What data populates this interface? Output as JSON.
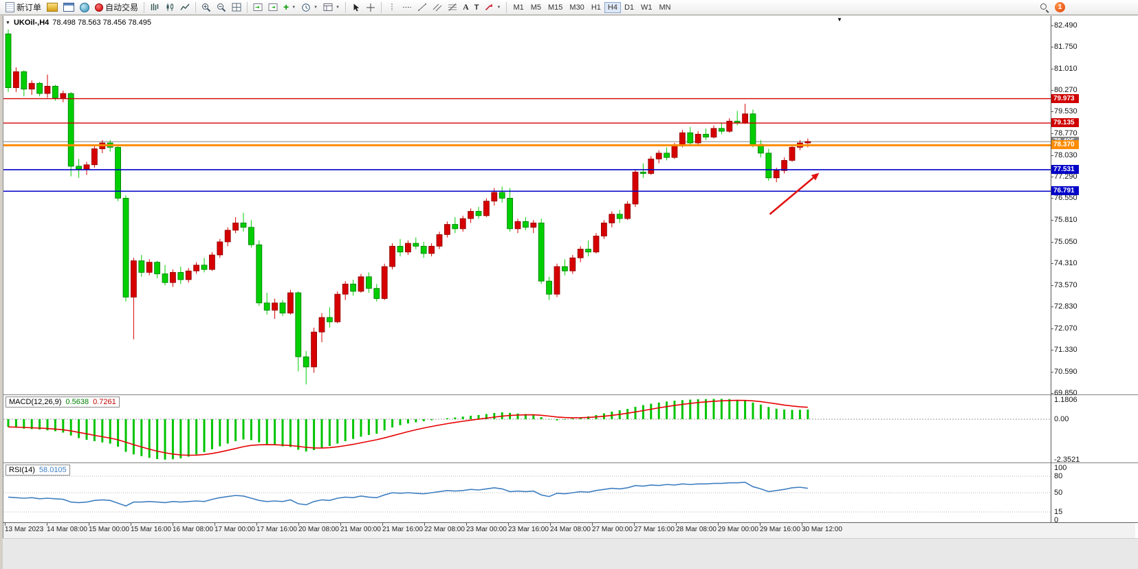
{
  "toolbar": {
    "new_order": "新订单",
    "auto_trading": "自动交易",
    "text_tool": "A",
    "label_tool": "T",
    "timeframes": [
      "M1",
      "M5",
      "M15",
      "M30",
      "H1",
      "H4",
      "D1",
      "W1",
      "MN"
    ],
    "active_timeframe": "H4",
    "notification_badge": "1"
  },
  "chart": {
    "symbol_period": "UKOil-,H4",
    "ohlc_text": "78.498 78.563 78.456 78.495",
    "price_ticks": [
      "82.490",
      "81.750",
      "81.010",
      "80.270",
      "79.530",
      "78.770",
      "78.030",
      "77.290",
      "76.550",
      "75.810",
      "75.050",
      "74.310",
      "73.570",
      "72.830",
      "72.070",
      "71.330",
      "70.590",
      "69.850"
    ],
    "levels": [
      {
        "label": "79.973",
        "value": 79.973,
        "color": "#d00000",
        "width": 1.4
      },
      {
        "label": "79.135",
        "value": 79.135,
        "color": "#d00000",
        "width": 1.4
      },
      {
        "label": "78.370",
        "value": 78.37,
        "color": "#ff8c00",
        "width": 3
      },
      {
        "label": "77.531",
        "value": 77.531,
        "color": "#0000c8",
        "width": 1.6
      },
      {
        "label": "76.791",
        "value": 76.791,
        "color": "#0000c8",
        "width": 1.6
      }
    ],
    "bid": {
      "label": "78.495",
      "value": 78.495,
      "color": "#808080"
    },
    "colors": {
      "up": "#d60000",
      "down": "#00ce00",
      "up_stroke": "#8c0000",
      "down_stroke": "#007a00"
    }
  },
  "macd": {
    "label": "MACD(12,26,9)",
    "main_value": "0.5638",
    "signal_value": "0.7261",
    "axis": [
      {
        "label": "1.1806",
        "value": 1.1806
      },
      {
        "label": "0.00",
        "value": 0
      },
      {
        "label": "-2.3521",
        "value": -2.3521
      }
    ],
    "histogram_color": "#00c400",
    "signal_color": "#e60000"
  },
  "rsi": {
    "label": "RSI(14)",
    "value": "58.0105",
    "axis": [
      {
        "label": "100",
        "value": 100
      },
      {
        "label": "80",
        "value": 80
      },
      {
        "label": "50",
        "value": 50
      },
      {
        "label": "15",
        "value": 15
      },
      {
        "label": "0",
        "value": 0
      }
    ],
    "levels": [
      80,
      50,
      15
    ],
    "line_color": "#3e7fc1"
  },
  "chart_data": {
    "type": "candlestick",
    "symbol": "UKOil",
    "period": "H4",
    "title": "UKOil-,H4 78.498 78.563 78.456 78.495",
    "price_range": [
      69.85,
      82.49
    ],
    "x_labels": [
      "13 Mar 2023",
      "14 Mar 08:00",
      "15 Mar 00:00",
      "15 Mar 16:00",
      "16 Mar 08:00",
      "17 Mar 00:00",
      "17 Mar 16:00",
      "20 Mar 08:00",
      "21 Mar 00:00",
      "21 Mar 16:00",
      "22 Mar 08:00",
      "23 Mar 00:00",
      "23 Mar 16:00",
      "24 Mar 08:00",
      "27 Mar 00:00",
      "27 Mar 16:00",
      "28 Mar 08:00",
      "29 Mar 00:00",
      "29 Mar 16:00",
      "30 Mar 12:00"
    ],
    "ohlc": [
      [
        82.2,
        82.35,
        80.2,
        80.35
      ],
      [
        80.35,
        81.05,
        80.2,
        80.9
      ],
      [
        80.9,
        80.95,
        80.05,
        80.3
      ],
      [
        80.3,
        80.6,
        80.1,
        80.5
      ],
      [
        80.5,
        80.55,
        80.05,
        80.15
      ],
      [
        80.15,
        80.8,
        80.0,
        80.4
      ],
      [
        80.4,
        80.45,
        79.9,
        80.0
      ],
      [
        80.0,
        80.25,
        79.85,
        80.15
      ],
      [
        80.15,
        80.2,
        77.3,
        77.65
      ],
      [
        77.65,
        77.9,
        77.25,
        77.55
      ],
      [
        77.55,
        77.8,
        77.35,
        77.7
      ],
      [
        77.7,
        78.35,
        77.6,
        78.25
      ],
      [
        78.25,
        78.55,
        78.1,
        78.45
      ],
      [
        78.45,
        78.55,
        78.15,
        78.3
      ],
      [
        78.3,
        78.4,
        76.45,
        76.55
      ],
      [
        76.55,
        76.65,
        73.0,
        73.15
      ],
      [
        73.15,
        74.5,
        71.7,
        74.4
      ],
      [
        74.4,
        74.6,
        73.85,
        74.0
      ],
      [
        74.0,
        74.45,
        73.9,
        74.35
      ],
      [
        74.35,
        74.4,
        73.8,
        73.95
      ],
      [
        73.95,
        74.25,
        73.55,
        73.65
      ],
      [
        73.65,
        74.1,
        73.5,
        74.0
      ],
      [
        74.0,
        74.2,
        73.6,
        73.75
      ],
      [
        73.75,
        74.15,
        73.65,
        74.05
      ],
      [
        74.05,
        74.35,
        73.95,
        74.25
      ],
      [
        74.25,
        74.5,
        74.0,
        74.1
      ],
      [
        74.1,
        74.7,
        74.05,
        74.6
      ],
      [
        74.6,
        75.15,
        74.5,
        75.05
      ],
      [
        75.05,
        75.55,
        74.9,
        75.45
      ],
      [
        75.45,
        75.9,
        75.35,
        75.7
      ],
      [
        75.7,
        76.05,
        75.4,
        75.55
      ],
      [
        75.55,
        75.8,
        74.85,
        74.95
      ],
      [
        74.95,
        75.1,
        72.85,
        72.95
      ],
      [
        72.95,
        73.3,
        72.55,
        72.7
      ],
      [
        72.7,
        73.1,
        72.4,
        72.95
      ],
      [
        72.95,
        73.05,
        72.5,
        72.6
      ],
      [
        72.6,
        73.4,
        72.55,
        73.3
      ],
      [
        73.3,
        73.35,
        70.6,
        71.1
      ],
      [
        71.1,
        71.3,
        70.15,
        70.75
      ],
      [
        70.75,
        72.1,
        70.55,
        71.95
      ],
      [
        71.95,
        72.6,
        71.6,
        72.45
      ],
      [
        72.45,
        72.8,
        72.1,
        72.3
      ],
      [
        72.3,
        73.35,
        72.25,
        73.25
      ],
      [
        73.25,
        73.7,
        73.05,
        73.6
      ],
      [
        73.6,
        73.75,
        73.2,
        73.35
      ],
      [
        73.35,
        73.95,
        73.3,
        73.85
      ],
      [
        73.85,
        74.0,
        73.3,
        73.45
      ],
      [
        73.45,
        73.6,
        73.0,
        73.1
      ],
      [
        73.1,
        74.3,
        73.05,
        74.2
      ],
      [
        74.2,
        75.0,
        74.1,
        74.9
      ],
      [
        74.9,
        75.15,
        74.55,
        74.7
      ],
      [
        74.7,
        75.1,
        74.6,
        75.0
      ],
      [
        75.0,
        75.2,
        74.8,
        74.9
      ],
      [
        74.9,
        75.05,
        74.5,
        74.65
      ],
      [
        74.65,
        75.0,
        74.55,
        74.9
      ],
      [
        74.9,
        75.4,
        74.8,
        75.3
      ],
      [
        75.3,
        75.75,
        75.2,
        75.65
      ],
      [
        75.65,
        75.9,
        75.35,
        75.5
      ],
      [
        75.5,
        75.95,
        75.4,
        75.85
      ],
      [
        75.85,
        76.2,
        75.7,
        76.1
      ],
      [
        76.1,
        76.25,
        75.85,
        75.95
      ],
      [
        75.95,
        76.55,
        75.9,
        76.45
      ],
      [
        76.45,
        76.9,
        76.3,
        76.75
      ],
      [
        76.75,
        76.95,
        76.4,
        76.55
      ],
      [
        76.55,
        76.9,
        75.4,
        75.5
      ],
      [
        75.5,
        75.85,
        75.35,
        75.75
      ],
      [
        75.75,
        75.9,
        75.45,
        75.55
      ],
      [
        75.55,
        75.8,
        75.35,
        75.7
      ],
      [
        75.7,
        75.85,
        73.6,
        73.7
      ],
      [
        73.7,
        73.85,
        73.05,
        73.25
      ],
      [
        73.25,
        74.3,
        73.15,
        74.2
      ],
      [
        74.2,
        74.45,
        73.9,
        74.05
      ],
      [
        74.05,
        74.6,
        73.95,
        74.5
      ],
      [
        74.5,
        74.9,
        74.35,
        74.8
      ],
      [
        74.8,
        75.1,
        74.55,
        74.7
      ],
      [
        74.7,
        75.35,
        74.65,
        75.25
      ],
      [
        75.25,
        75.8,
        75.15,
        75.7
      ],
      [
        75.7,
        76.1,
        75.55,
        76.0
      ],
      [
        76.0,
        76.15,
        75.7,
        75.85
      ],
      [
        75.85,
        76.45,
        75.8,
        76.35
      ],
      [
        76.35,
        77.55,
        76.25,
        77.45
      ],
      [
        77.45,
        77.75,
        77.25,
        77.4
      ],
      [
        77.4,
        78.0,
        77.35,
        77.9
      ],
      [
        77.9,
        78.2,
        77.75,
        78.1
      ],
      [
        78.1,
        78.3,
        77.85,
        77.95
      ],
      [
        77.95,
        78.45,
        77.9,
        78.35
      ],
      [
        78.35,
        78.9,
        78.3,
        78.8
      ],
      [
        78.8,
        79.0,
        78.35,
        78.45
      ],
      [
        78.45,
        78.85,
        78.4,
        78.75
      ],
      [
        78.75,
        78.95,
        78.55,
        78.65
      ],
      [
        78.65,
        79.05,
        78.6,
        78.95
      ],
      [
        78.95,
        79.15,
        78.75,
        78.85
      ],
      [
        78.85,
        79.3,
        78.8,
        79.2
      ],
      [
        79.2,
        79.55,
        79.05,
        79.15
      ],
      [
        79.15,
        79.8,
        79.1,
        79.45
      ],
      [
        79.45,
        79.6,
        78.3,
        78.4
      ],
      [
        78.4,
        78.55,
        77.95,
        78.1
      ],
      [
        78.1,
        78.25,
        77.15,
        77.25
      ],
      [
        77.25,
        77.6,
        77.1,
        77.5
      ],
      [
        77.5,
        77.95,
        77.4,
        77.85
      ],
      [
        77.85,
        78.4,
        77.8,
        78.3
      ],
      [
        78.3,
        78.55,
        78.2,
        78.45
      ],
      [
        78.45,
        78.6,
        78.3,
        78.5
      ]
    ],
    "macd_histogram": [
      -0.45,
      -0.5,
      -0.55,
      -0.58,
      -0.6,
      -0.65,
      -0.7,
      -0.78,
      -0.95,
      -1.1,
      -1.2,
      -1.28,
      -1.35,
      -1.42,
      -1.6,
      -1.9,
      -2.05,
      -2.15,
      -2.25,
      -2.32,
      -2.3521,
      -2.33,
      -2.28,
      -2.18,
      -2.05,
      -1.92,
      -1.75,
      -1.58,
      -1.42,
      -1.28,
      -1.18,
      -1.22,
      -1.35,
      -1.45,
      -1.52,
      -1.58,
      -1.62,
      -1.78,
      -1.88,
      -1.8,
      -1.7,
      -1.56,
      -1.42,
      -1.28,
      -1.15,
      -1.02,
      -0.92,
      -0.85,
      -0.65,
      -0.48,
      -0.35,
      -0.25,
      -0.18,
      -0.12,
      -0.06,
      0.0,
      0.06,
      0.1,
      0.15,
      0.2,
      0.24,
      0.3,
      0.36,
      0.4,
      0.37,
      0.33,
      0.3,
      0.27,
      0.12,
      -0.02,
      -0.07,
      -0.03,
      0.04,
      0.1,
      0.16,
      0.24,
      0.34,
      0.44,
      0.52,
      0.6,
      0.72,
      0.82,
      0.9,
      0.97,
      1.03,
      1.08,
      1.11,
      1.14,
      1.16,
      1.17,
      1.18,
      1.1806,
      1.17,
      1.13,
      1.07,
      0.97,
      0.85,
      0.71,
      0.61,
      0.56,
      0.54,
      0.55,
      0.5638
    ],
    "rsi": [
      42,
      41,
      40,
      41,
      39,
      40,
      39,
      38,
      33,
      32,
      33,
      36,
      37,
      36,
      31,
      26,
      33,
      33,
      34,
      33,
      32,
      34,
      33,
      34,
      35,
      34,
      38,
      41,
      43,
      45,
      44,
      40,
      36,
      34,
      35,
      34,
      37,
      30,
      28,
      34,
      37,
      36,
      40,
      42,
      41,
      44,
      42,
      41,
      46,
      50,
      49,
      50,
      49,
      48,
      50,
      52,
      54,
      53,
      54,
      56,
      55,
      57,
      59,
      57,
      52,
      53,
      52,
      53,
      46,
      43,
      49,
      48,
      50,
      52,
      51,
      54,
      56,
      58,
      57,
      59,
      63,
      62,
      64,
      63,
      65,
      64,
      66,
      65,
      66,
      66,
      67,
      67,
      68,
      68,
      69,
      61,
      57,
      52,
      54,
      56,
      59,
      60,
      58.01
    ],
    "annotations": [
      {
        "type": "arrow",
        "color": "#e11212",
        "from": {
          "bar": 97.5,
          "price": 76.0
        },
        "to": {
          "bar": 103.8,
          "price": 77.42
        }
      }
    ]
  }
}
